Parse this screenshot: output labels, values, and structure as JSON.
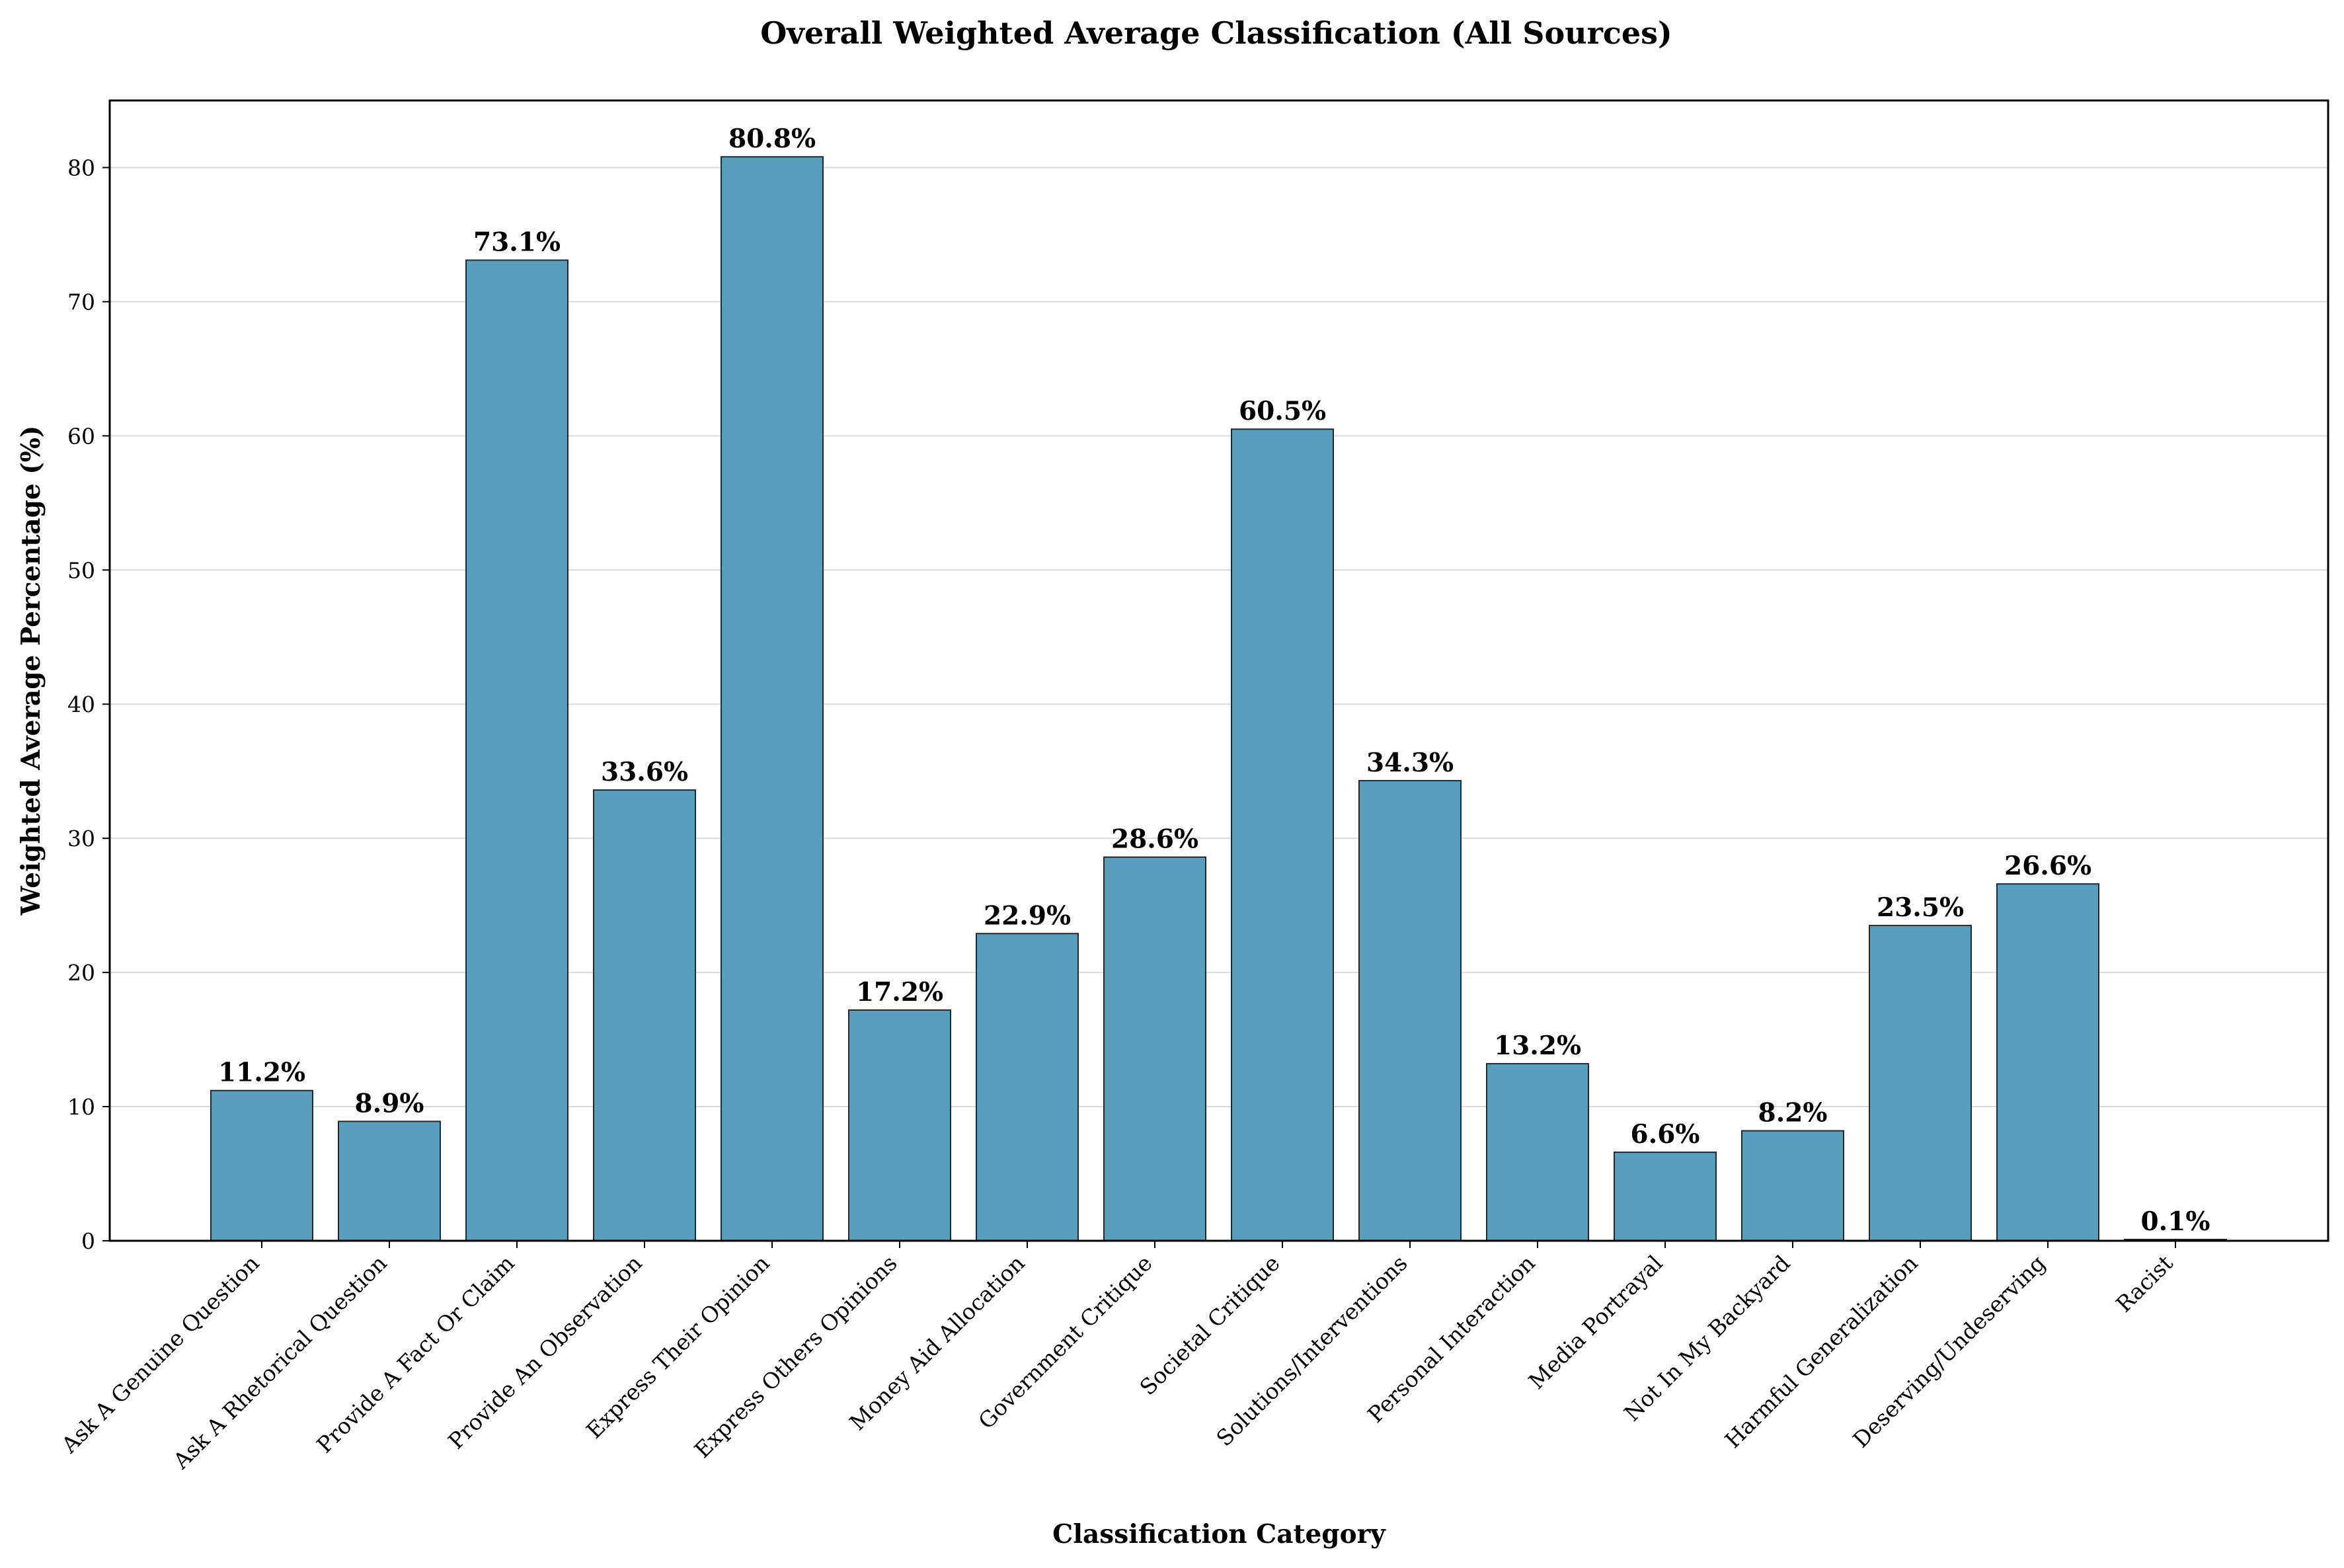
{
  "chart_data": {
    "type": "bar",
    "title": "Overall Weighted Average Classification (All Sources)",
    "xlabel": "Classification Category",
    "ylabel": "Weighted Average Percentage (%)",
    "ylim": [
      0,
      85
    ],
    "yticks": [
      0,
      10,
      20,
      30,
      40,
      50,
      60,
      70,
      80
    ],
    "grid": "horizontal",
    "bar_color": "#5a9ebd",
    "categories": [
      "Ask A Genuine Question",
      "Ask A Rhetorical Question",
      "Provide A Fact Or Claim",
      "Provide An Observation",
      "Express Their Opinion",
      "Express Others Opinions",
      "Money Aid Allocation",
      "Government Critique",
      "Societal Critique",
      "Solutions/Interventions",
      "Personal Interaction",
      "Media Portrayal",
      "Not In My Backyard",
      "Harmful Generalization",
      "Deserving/Undeserving",
      "Racist"
    ],
    "values": [
      11.2,
      8.9,
      73.1,
      33.6,
      80.8,
      17.2,
      22.9,
      28.6,
      60.5,
      34.3,
      13.2,
      6.6,
      8.2,
      23.5,
      26.6,
      0.1
    ],
    "value_labels": [
      "11.2%",
      "8.9%",
      "73.1%",
      "33.6%",
      "80.8%",
      "17.2%",
      "22.9%",
      "28.6%",
      "60.5%",
      "34.3%",
      "13.2%",
      "6.6%",
      "8.2%",
      "23.5%",
      "26.6%",
      "0.1%"
    ]
  }
}
